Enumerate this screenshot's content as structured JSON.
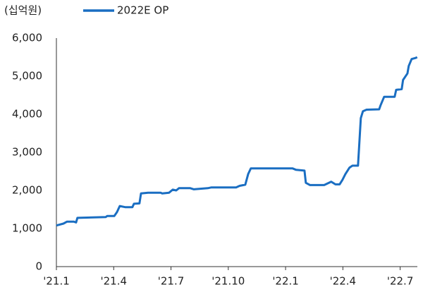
{
  "chart_data": {
    "type": "line",
    "unit_label": "(십억원)",
    "series": [
      {
        "name": "2022E OP",
        "color": "#1a6ec2",
        "x": [
          0,
          0.37,
          0.55,
          0.92,
          1.03,
          1.1,
          2.58,
          2.66,
          3.03,
          3.17,
          3.32,
          3.62,
          3.98,
          4.06,
          4.35,
          4.43,
          4.8,
          5.46,
          5.54,
          5.9,
          6.09,
          6.27,
          6.42,
          7.01,
          7.2,
          7.93,
          8.12,
          9.41,
          9.59,
          9.89,
          10.04,
          10.18,
          12.36,
          12.55,
          12.99,
          13.06,
          13.28,
          14.02,
          14.39,
          14.61,
          14.83,
          14.98,
          15.13,
          15.35,
          15.5,
          15.79,
          15.94,
          16.05,
          16.24,
          16.9,
          16.97,
          17.16,
          17.71,
          17.79,
          18.08,
          18.15,
          18.38,
          18.45,
          18.6,
          18.82,
          18.89
        ],
        "values": [
          1080,
          1130,
          1180,
          1180,
          1160,
          1280,
          1300,
          1330,
          1330,
          1430,
          1590,
          1560,
          1560,
          1650,
          1660,
          1920,
          1940,
          1940,
          1920,
          1940,
          2020,
          2000,
          2060,
          2060,
          2030,
          2060,
          2080,
          2080,
          2120,
          2150,
          2430,
          2580,
          2580,
          2540,
          2520,
          2200,
          2140,
          2140,
          2230,
          2160,
          2160,
          2280,
          2430,
          2600,
          2650,
          2650,
          3900,
          4080,
          4120,
          4130,
          4230,
          4460,
          4460,
          4640,
          4660,
          4900,
          5070,
          5270,
          5450,
          5480,
          5500
        ]
      }
    ],
    "xlim": [
      0,
      18.9
    ],
    "xticks": [
      {
        "value": 0,
        "label": "'21.1"
      },
      {
        "value": 3,
        "label": "'21.4"
      },
      {
        "value": 6,
        "label": "'21.7"
      },
      {
        "value": 9,
        "label": "'21.10"
      },
      {
        "value": 12,
        "label": "'22.1"
      },
      {
        "value": 15,
        "label": "'22.4"
      },
      {
        "value": 18,
        "label": "'22.7"
      }
    ],
    "ylim": [
      0,
      6000
    ],
    "yticks": [
      0,
      {
        "value": 1000,
        "label": "1,000"
      },
      {
        "value": 2000,
        "label": "2,000"
      },
      {
        "value": 3000,
        "label": "3,000"
      },
      {
        "value": 4000,
        "label": "4,000"
      },
      {
        "value": 5000,
        "label": "5,000"
      },
      {
        "value": 6000,
        "label": "6,000"
      }
    ]
  }
}
